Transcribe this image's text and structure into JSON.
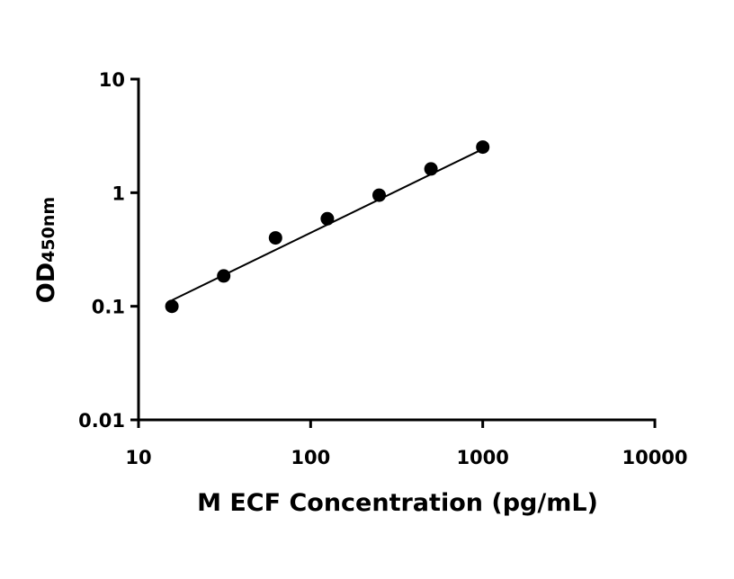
{
  "chart_data": {
    "type": "scatter",
    "title": "",
    "xlabel": "M ECF Concentration (pg/mL)",
    "ylabel": "OD",
    "ylabel_subscript": "450nm",
    "x_scale": "log",
    "y_scale": "log",
    "xlim": [
      10,
      10000
    ],
    "ylim": [
      0.01,
      10
    ],
    "x_ticks": [
      10,
      100,
      1000,
      10000
    ],
    "x_tick_labels": [
      "10",
      "100",
      "1000",
      "10000"
    ],
    "y_ticks": [
      0.01,
      0.1,
      1,
      10
    ],
    "y_tick_labels": [
      "0.01",
      "0.1",
      "1",
      "10"
    ],
    "grid": false,
    "legend": "none",
    "series": [
      {
        "x": [
          15.625,
          31.25,
          62.5,
          125,
          250,
          500,
          1000
        ],
        "y": [
          0.1,
          0.185,
          0.4,
          0.59,
          0.95,
          1.62,
          2.52
        ],
        "marker_color": "#000000",
        "fit_line": {
          "x": [
            15.625,
            1000
          ],
          "y": [
            0.113,
            2.42
          ]
        }
      }
    ]
  }
}
